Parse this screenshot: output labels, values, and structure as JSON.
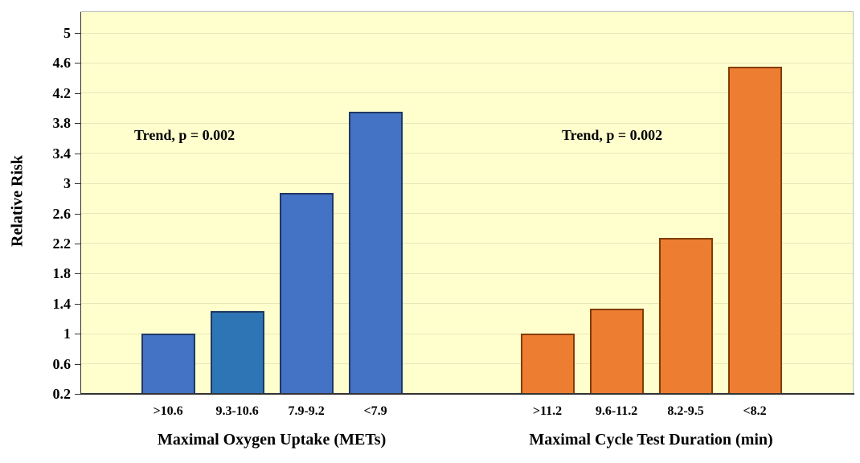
{
  "chart_data": {
    "type": "bar",
    "title": "",
    "ylabel": "Relative Risk",
    "ylim": [
      0.2,
      5
    ],
    "y_tick_labels": [
      "5",
      "4.6",
      "4.2",
      "3.8",
      "3.4",
      "3",
      "2.6",
      "2.2",
      "1.8",
      "1.4",
      "1",
      "0.6",
      "0.2"
    ],
    "grid": true,
    "legend": "none",
    "plot_background": "#FFFFCE",
    "groups": [
      {
        "xlabel": "Maximal Oxygen Uptake (METs)",
        "annotation": "Trend, p = 0.002",
        "categories": [
          ">10.6",
          "9.3-10.6",
          "7.9-9.2",
          "<7.9"
        ],
        "values": [
          1.0,
          1.3,
          2.87,
          3.95
        ],
        "bar_colors": [
          "#4472C4",
          "#2E75B6",
          "#4472C4",
          "#4472C4"
        ],
        "border_color": "#1F3864"
      },
      {
        "xlabel": "Maximal Cycle Test Duration (min)",
        "annotation": "Trend, p = 0.002",
        "categories": [
          ">11.2",
          "9.6-11.2",
          "8.2-9.5",
          "<8.2"
        ],
        "values": [
          1.0,
          1.33,
          2.27,
          4.55
        ],
        "bar_colors": [
          "#ED7D31",
          "#ED7D31",
          "#ED7D31",
          "#ED7D31"
        ],
        "border_color": "#833C00"
      }
    ]
  }
}
